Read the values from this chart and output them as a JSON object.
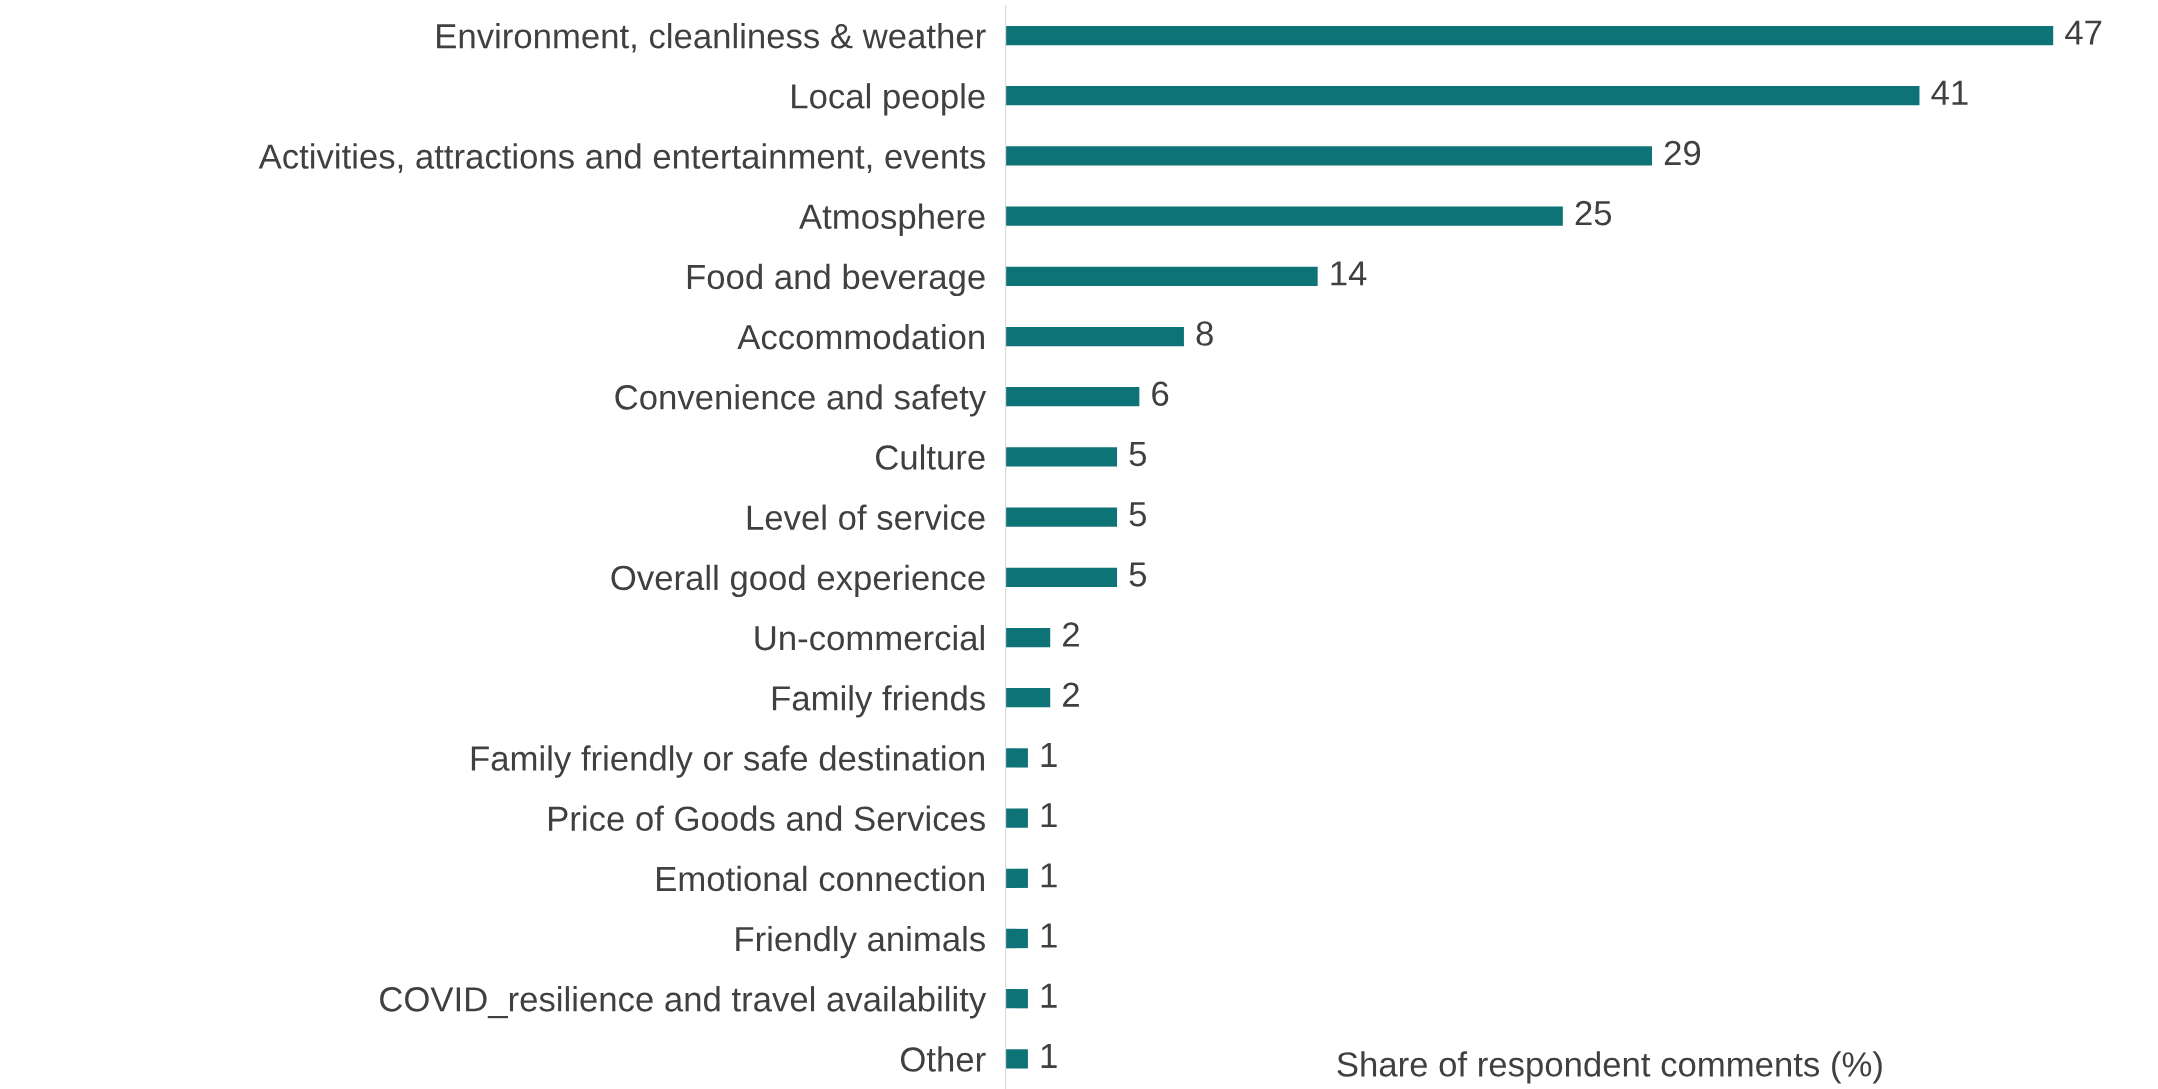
{
  "chart_data": {
    "type": "bar",
    "orientation": "horizontal",
    "xlabel": "Share of respondent comments (%)",
    "categories": [
      "Environment, cleanliness & weather",
      "Local people",
      "Activities, attractions and entertainment, events",
      "Atmosphere",
      "Food and beverage",
      "Accommodation",
      "Convenience and safety",
      "Culture",
      "Level of service",
      "Overall good experience",
      "Un-commercial",
      "Family friends",
      "Family friendly or safe destination",
      "Price of Goods and Services",
      "Emotional connection",
      "Friendly animals",
      "COVID_resilience and travel availability",
      "Other"
    ],
    "values": [
      47,
      41,
      29,
      25,
      14,
      8,
      6,
      5,
      5,
      5,
      2,
      2,
      1,
      1,
      1,
      1,
      1,
      1
    ],
    "color": "#0e7377",
    "data_labels": true,
    "grid": false,
    "legend": false
  }
}
